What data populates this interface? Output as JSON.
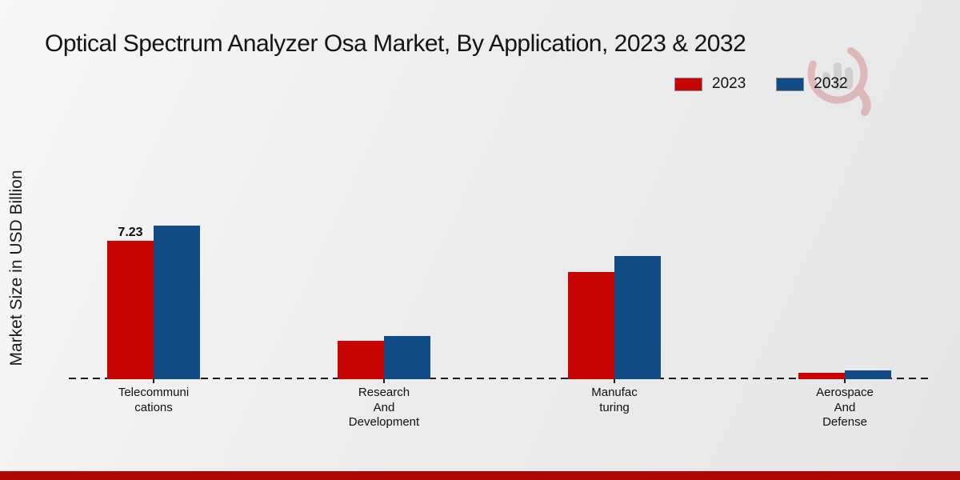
{
  "title": "Optical Spectrum Analyzer Osa Market, By Application, 2023 & 2032",
  "y_axis_label": "Market Size in USD Billion",
  "legend": {
    "items": [
      {
        "label": "2023",
        "color": "#c70404"
      },
      {
        "label": "2032",
        "color": "#124c86"
      }
    ]
  },
  "watermark": {
    "name": "market-research-logo-watermark",
    "ring_color": "#c34b4b",
    "bars_color": "#9a9a9a"
  },
  "footer": {
    "strip_color": "#b20505"
  },
  "chart_data": {
    "type": "bar",
    "title": "Optical Spectrum Analyzer Osa Market, By Application, 2023 & 2032",
    "xlabel": "",
    "ylabel": "Market Size in USD Billion",
    "categories": [
      "Telecommunications",
      "Research And Development",
      "Manufacturing",
      "Aerospace And Defense"
    ],
    "tick_label_lines": [
      [
        "Telecommuni",
        "cations"
      ],
      [
        "Research",
        "And",
        "Development"
      ],
      [
        "Manufac",
        "turing"
      ],
      [
        "Aerospace",
        "And",
        "Defense"
      ]
    ],
    "series": [
      {
        "name": "2023",
        "color": "#c70404",
        "values": [
          7.23,
          2.0,
          5.6,
          0.35
        ]
      },
      {
        "name": "2032",
        "color": "#124c86",
        "values": [
          8.03,
          2.26,
          6.45,
          0.45
        ]
      }
    ],
    "annotations": [
      {
        "text": "7.23",
        "series": "2023",
        "category": "Telecommunications",
        "series_index": 0,
        "category_index": 0
      }
    ],
    "ylim": [
      0,
      8.6
    ],
    "grid": false,
    "axis_style": "dashed-baseline-only",
    "legend_position": "top-right"
  }
}
